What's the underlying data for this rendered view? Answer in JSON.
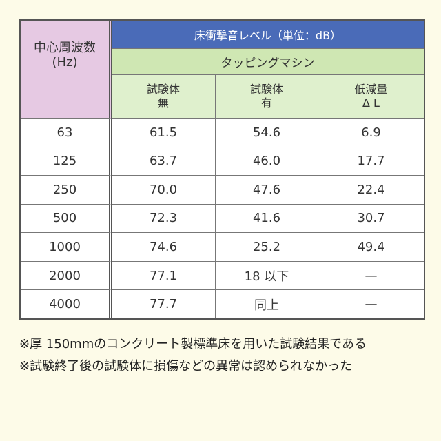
{
  "table": {
    "freq_header_line1": "中心周波数",
    "freq_header_line2": "(Hz)",
    "unit_header": "床衝撃音レベル（単位：dB）",
    "machine_header": "タッピングマシン",
    "col_without_line1": "試験体",
    "col_without_line2": "無",
    "col_with_line1": "試験体",
    "col_with_line2": "有",
    "col_reduction_line1": "低減量",
    "col_reduction_line2": "Δ L",
    "rows": [
      {
        "freq": "63",
        "without": "61.5",
        "with": "54.6",
        "reduction": "6.9"
      },
      {
        "freq": "125",
        "without": "63.7",
        "with": "46.0",
        "reduction": "17.7"
      },
      {
        "freq": "250",
        "without": "70.0",
        "with": "47.6",
        "reduction": "22.4"
      },
      {
        "freq": "500",
        "without": "72.3",
        "with": "41.6",
        "reduction": "30.7"
      },
      {
        "freq": "1000",
        "without": "74.6",
        "with": "25.2",
        "reduction": "49.4"
      },
      {
        "freq": "2000",
        "without": "77.1",
        "with": "18 以下",
        "reduction": "—"
      },
      {
        "freq": "4000",
        "without": "77.7",
        "with": "同上",
        "reduction": "—"
      }
    ]
  },
  "notes": [
    "※厚 150mmのコンクリート製標準床を用いた試験結果である",
    "※試験終了後の試験体に損傷などの異常は認められなかった"
  ],
  "colors": {
    "background": "#fdfbe8",
    "freq_header_bg": "#e6c9e3",
    "unit_header_bg": "#4a6bb8",
    "machine_header_bg": "#cfe7b3",
    "sub_header_bg": "#dff0cd"
  }
}
